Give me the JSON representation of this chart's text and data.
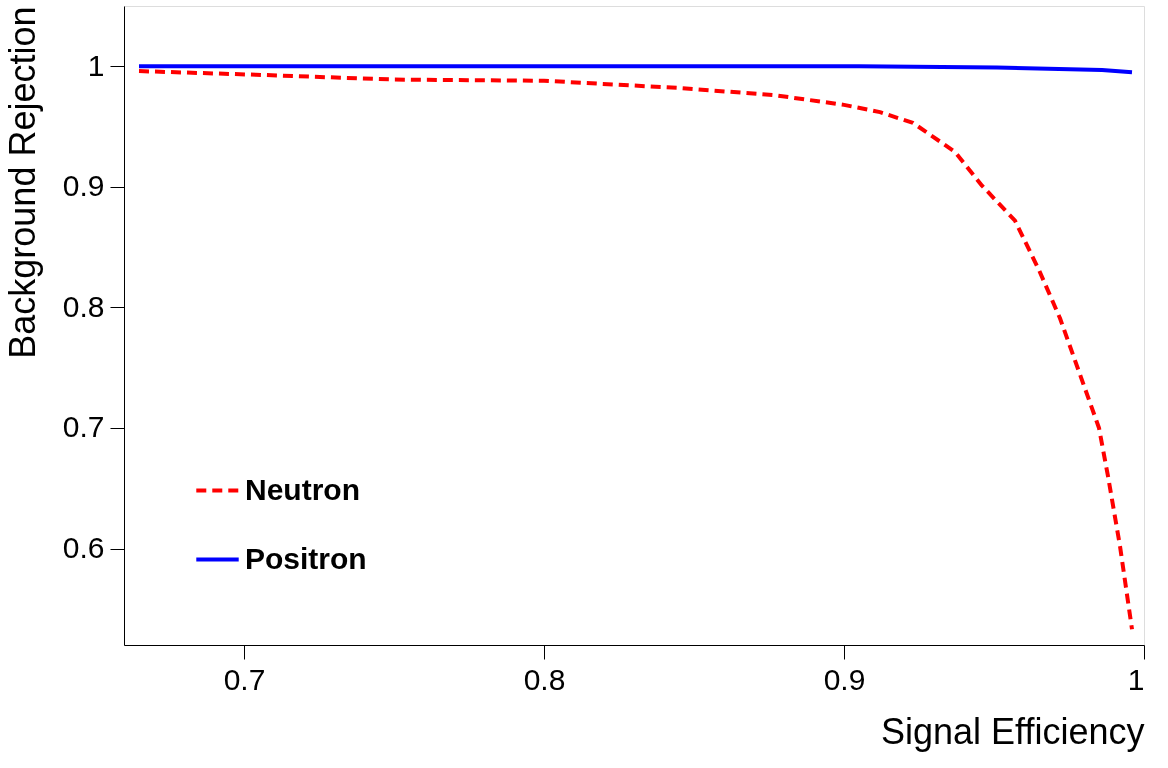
{
  "chart_data": {
    "type": "line",
    "xlabel": "Signal Efficiency",
    "ylabel": "Background Rejection",
    "xlim": [
      0.66,
      1.0
    ],
    "ylim": [
      0.52,
      1.05
    ],
    "xticks": [
      0.7,
      0.8,
      0.9,
      1
    ],
    "yticks": [
      0.6,
      0.7,
      0.8,
      0.9,
      1
    ],
    "grid": false,
    "legend": "bottom left",
    "marker": "none",
    "series": [
      {
        "name": "Neutron",
        "color": "#ff0000",
        "line_style": "dashed",
        "x": [
          0.665,
          0.704,
          0.75,
          0.8,
          0.845,
          0.877,
          0.9,
          0.912,
          0.923,
          0.937,
          0.946,
          0.957,
          0.965,
          0.972,
          0.979,
          0.985,
          0.988,
          0.992,
          0.996
        ],
        "values": [
          0.996,
          0.993,
          0.989,
          0.988,
          0.982,
          0.976,
          0.968,
          0.962,
          0.953,
          0.929,
          0.901,
          0.872,
          0.831,
          0.791,
          0.742,
          0.7,
          0.66,
          0.602,
          0.533
        ]
      },
      {
        "name": "Positron",
        "color": "#0000ff",
        "line_style": "solid",
        "x": [
          0.665,
          0.905,
          0.951,
          0.986,
          0.996
        ],
        "values": [
          1.0,
          1.0,
          0.999,
          0.997,
          0.995
        ]
      }
    ]
  }
}
